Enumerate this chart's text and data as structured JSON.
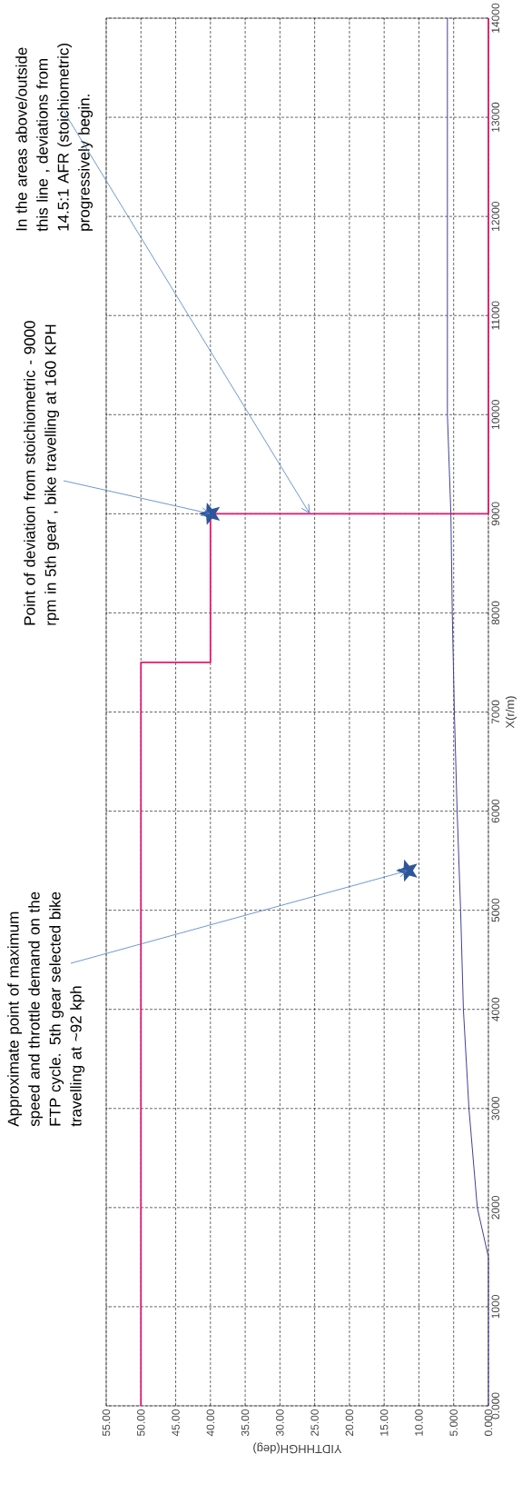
{
  "chart_data": {
    "type": "line",
    "xlabel": "YIDTHHGH(deg)",
    "ylabel": "X(r/m)",
    "xlim": [
      55,
      0
    ],
    "ylim": [
      0,
      14000
    ],
    "xticks": [
      {
        "value": 0,
        "label": "0.000"
      },
      {
        "value": 5,
        "label": "5.000"
      },
      {
        "value": 10,
        "label": "10.00"
      },
      {
        "value": 15,
        "label": "15.00"
      },
      {
        "value": 20,
        "label": "20.00"
      },
      {
        "value": 25,
        "label": "25.00"
      },
      {
        "value": 30,
        "label": "30.00"
      },
      {
        "value": 35,
        "label": "35.00"
      },
      {
        "value": 40,
        "label": "40.00"
      },
      {
        "value": 45,
        "label": "45.00"
      },
      {
        "value": 50,
        "label": "50.00"
      },
      {
        "value": 55,
        "label": "55.00"
      }
    ],
    "yticks": [
      {
        "value": 0,
        "label": "0.000"
      },
      1000,
      2000,
      3000,
      4000,
      5000,
      6000,
      7000,
      8000,
      9000,
      10000,
      11000,
      12000,
      13000,
      14000
    ],
    "grid": true,
    "series": [
      {
        "color": "#e8186e",
        "x": [
          50,
          50,
          40,
          40,
          0,
          0
        ],
        "values": [
          0,
          7500,
          7500,
          9000,
          9000,
          14000
        ]
      },
      {
        "color": "#40409a",
        "x": [
          0,
          0,
          1.6,
          2.8,
          3.6,
          4.0,
          4.5,
          4.9,
          5.2,
          5.4,
          5.9,
          5.9
        ],
        "values": [
          0,
          1500,
          2000,
          3000,
          4000,
          5000,
          6000,
          7000,
          8000,
          9000,
          10000,
          14000
        ]
      },
      {
        "type": "scatter",
        "color": "#2e5597",
        "marker": "star",
        "x": [
          40,
          11.6
        ],
        "values": [
          9000,
          5400
        ]
      }
    ],
    "annotations": [
      {
        "text": "Approximate point of maximum speed and throttle demand on the FTP cycle.  5th gear selected bike travelling at ~92 kph",
        "x": 11.6,
        "y": 5400
      },
      {
        "text": "Point of deviation from stoichiometric - 9000 rpm in 5th gear , bike travelling  at  160 KPH",
        "x": 40,
        "y": 9000
      },
      {
        "text": "In the areas above/outside this line , deviations from  14.5:1 AFR (stoichiometric) progressively begin.",
        "x": 25.7,
        "y": 9000
      }
    ]
  }
}
